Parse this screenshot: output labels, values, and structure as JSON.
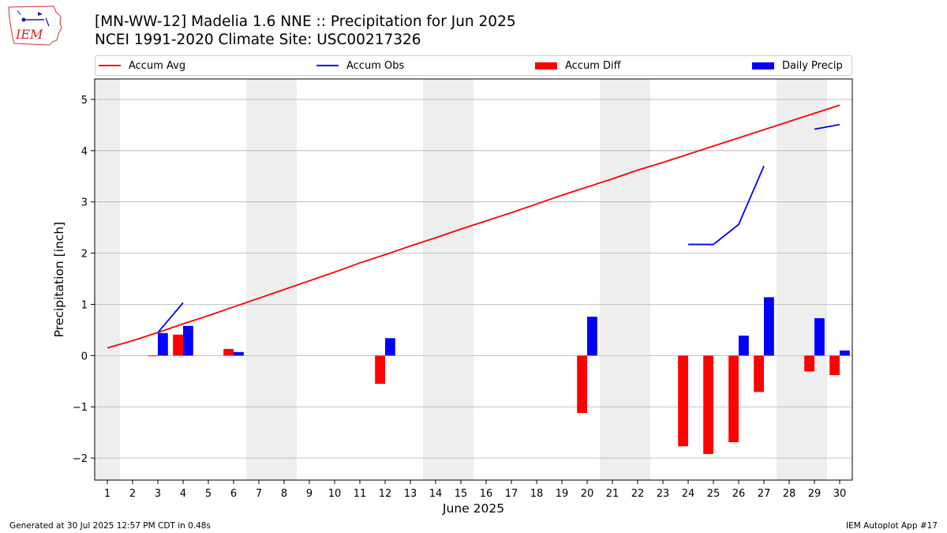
{
  "header": {
    "title_line1": "[MN-WW-12] Madelia 1.6 NNE :: Precipitation for Jun 2025",
    "title_line2": "NCEI 1991-2020 Climate Site: USC00217326",
    "logo_text": "IEM"
  },
  "legend": [
    {
      "label": "Accum Avg",
      "kind": "line",
      "color": "#ff0000"
    },
    {
      "label": "Accum Obs",
      "kind": "line",
      "color": "#0000ff"
    },
    {
      "label": "Accum Diff",
      "kind": "bar",
      "color": "#ff0000"
    },
    {
      "label": "Daily Precip",
      "kind": "bar",
      "color": "#0000ff"
    }
  ],
  "footer": {
    "left": "Generated at 30 Jul 2025 12:57 PM CDT in 0.48s",
    "right": "IEM Autoplot App #17"
  },
  "chart_data": {
    "type": "bar",
    "title": "[MN-WW-12] Madelia 1.6 NNE :: Precipitation for Jun 2025",
    "subtitle": "NCEI 1991-2020 Climate Site: USC00217326",
    "xlabel": "June 2025",
    "ylabel": "Precipitation [inch]",
    "xlim": [
      0.5,
      30.5
    ],
    "ylim": [
      -2.43,
      5.4
    ],
    "xticks": [
      1,
      2,
      3,
      4,
      5,
      6,
      7,
      8,
      9,
      10,
      11,
      12,
      13,
      14,
      15,
      16,
      17,
      18,
      19,
      20,
      21,
      22,
      23,
      24,
      25,
      26,
      27,
      28,
      29,
      30
    ],
    "yticks": [
      -2,
      -1,
      0,
      1,
      2,
      3,
      4,
      5
    ],
    "grid": "horizontal",
    "legend_position": "top",
    "weekend_shading": [
      [
        0.5,
        1.5
      ],
      [
        6.5,
        8.5
      ],
      [
        13.5,
        15.5
      ],
      [
        20.5,
        22.5
      ],
      [
        27.5,
        29.5
      ]
    ],
    "series": [
      {
        "name": "Accum Avg",
        "type": "line",
        "color": "#ff0000",
        "x": [
          1,
          2,
          3,
          4,
          5,
          6,
          7,
          8,
          9,
          10,
          11,
          12,
          13,
          14,
          15,
          16,
          17,
          18,
          19,
          20,
          21,
          22,
          23,
          24,
          25,
          26,
          27,
          28,
          29,
          30
        ],
        "values": [
          0.15,
          0.29,
          0.45,
          0.62,
          0.78,
          0.95,
          1.12,
          1.29,
          1.46,
          1.63,
          1.81,
          1.97,
          2.14,
          2.3,
          2.47,
          2.63,
          2.79,
          2.96,
          3.13,
          3.29,
          3.45,
          3.62,
          3.77,
          3.93,
          4.09,
          4.25,
          4.41,
          4.57,
          4.73,
          4.89
        ]
      },
      {
        "name": "Accum Obs",
        "type": "line",
        "color": "#0000ff",
        "segments": [
          {
            "x": [
              3,
              4
            ],
            "values": [
              0.45,
              1.03
            ]
          },
          {
            "x": [
              24,
              25,
              26,
              27
            ],
            "values": [
              2.17,
              2.17,
              2.56,
              3.7
            ]
          },
          {
            "x": [
              29,
              30
            ],
            "values": [
              4.42,
              4.51
            ]
          }
        ]
      },
      {
        "name": "Accum Diff",
        "type": "bar",
        "color": "#ff0000",
        "x": [
          3,
          4,
          6,
          12,
          20,
          24,
          25,
          26,
          27,
          29,
          30
        ],
        "values": [
          -0.01,
          0.41,
          0.13,
          -0.55,
          -1.12,
          -1.77,
          -1.92,
          -1.69,
          -0.71,
          -0.31,
          -0.38
        ]
      },
      {
        "name": "Daily Precip",
        "type": "bar",
        "color": "#0000ff",
        "x": [
          3,
          4,
          6,
          12,
          20,
          26,
          27,
          29,
          30
        ],
        "values": [
          0.44,
          0.58,
          0.07,
          0.34,
          0.76,
          0.39,
          1.14,
          0.73,
          0.1
        ]
      }
    ]
  }
}
